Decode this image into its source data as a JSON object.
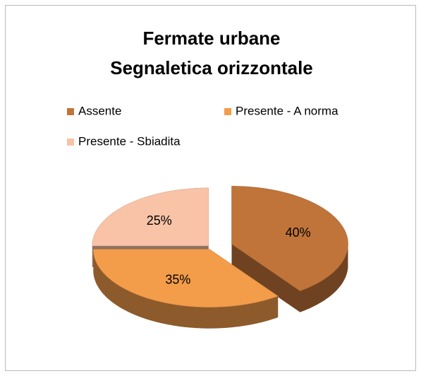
{
  "chart_data": {
    "type": "pie3d",
    "title": [
      "Fermate urbane",
      "Segnaletica orizzontale"
    ],
    "categories": [
      "Assente",
      "Presente - A norma",
      "Presente - Sbiadita"
    ],
    "values": [
      40,
      35,
      25
    ],
    "value_labels": [
      "40%",
      "35%",
      "25%"
    ],
    "colors": [
      "#c0743a",
      "#f39c4a",
      "#f8c3a6"
    ],
    "legend": "top"
  }
}
